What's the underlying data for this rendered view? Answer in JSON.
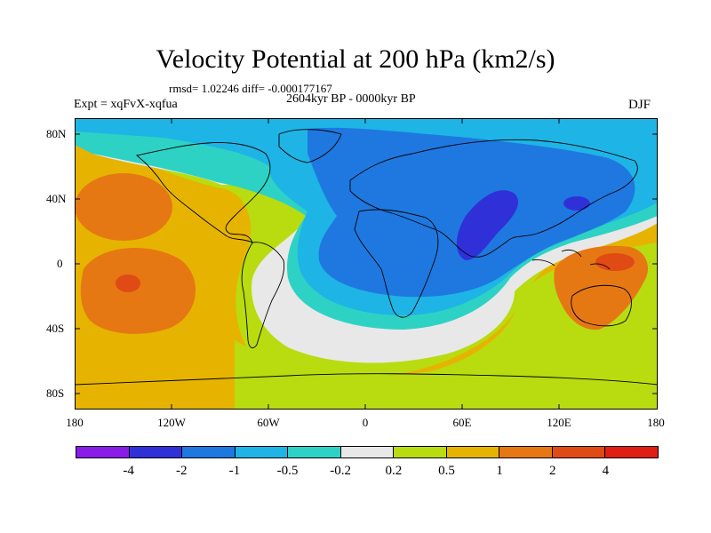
{
  "title": "Velocity Potential at 200 hPa (km2/s)",
  "stats": "rmsd= 1.02246 diff= -0.000177167",
  "expt": "Expt = xqFvX-xqfua",
  "period": "2604kyr BP - 0000kyr BP",
  "season": "DJF",
  "lat_labels": [
    "80N",
    "40N",
    "0",
    "40S",
    "80S"
  ],
  "lon_labels": [
    "180",
    "120W",
    "60W",
    "0",
    "60E",
    "120E",
    "180"
  ],
  "colorbar": {
    "levels": [
      "-4",
      "-2",
      "-1",
      "-0.5",
      "-0.2",
      "0.2",
      "0.5",
      "1",
      "2",
      "4"
    ],
    "colors": [
      "#8a1ce8",
      "#3030d8",
      "#1e78e0",
      "#1eb4e6",
      "#2ed2c4",
      "#e8e8e8",
      "#b8dc10",
      "#e6b400",
      "#e67814",
      "#e04a14",
      "#e01e14"
    ]
  }
}
